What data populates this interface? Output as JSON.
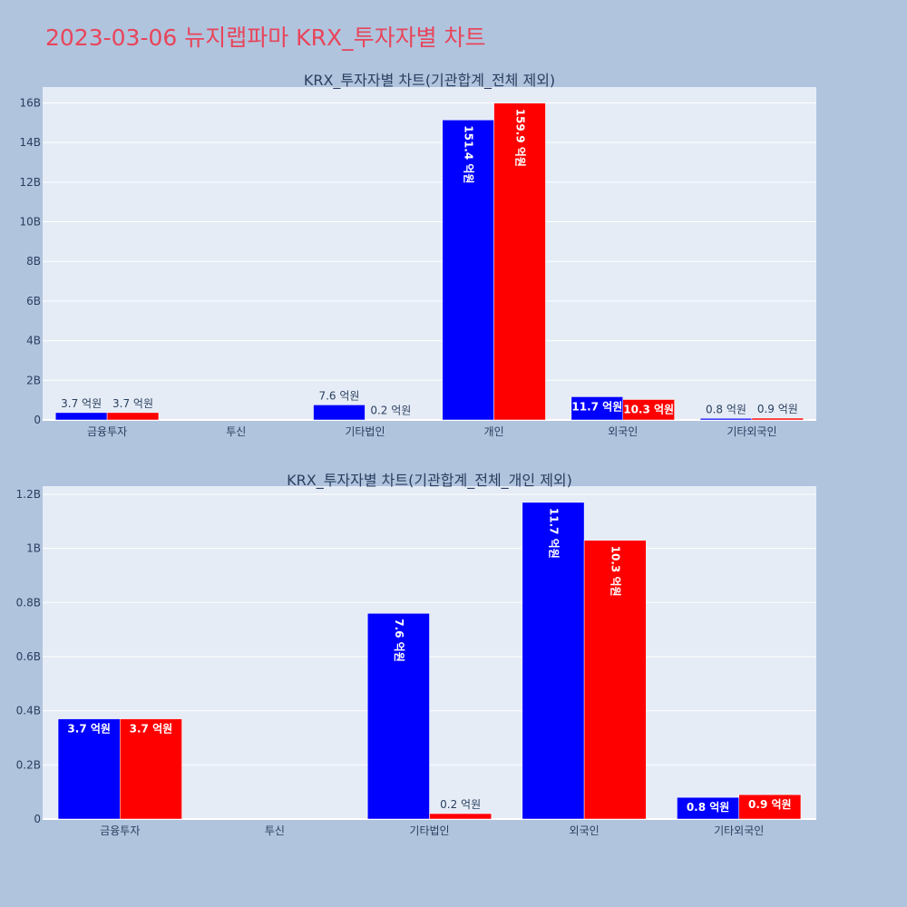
{
  "page": {
    "title": "2023-03-06 뉴지랩파마 KRX_투자자별 차트"
  },
  "chart_data": [
    {
      "type": "bar",
      "title": "KRX_투자자별 차트(기관합계_전체 제외)",
      "categories": [
        "금융투자",
        "투신",
        "기타법인",
        "개인",
        "외국인",
        "기타외국인"
      ],
      "series": [
        {
          "color": "#0000ff",
          "values": [
            370000000,
            0,
            760000000,
            15140000000,
            1170000000,
            80000000
          ],
          "labels": [
            "3.7 억원",
            "",
            "7.6 억원",
            "151.4 억원",
            "11.7 억원",
            "0.8 억원"
          ]
        },
        {
          "color": "#ff0000",
          "values": [
            370000000,
            0,
            20000000,
            15990000000,
            1030000000,
            90000000
          ],
          "labels": [
            "3.7 억원",
            "",
            "0.2 억원",
            "159.9 억원",
            "10.3 억원",
            "0.9 억원"
          ]
        }
      ],
      "ylim": [
        0,
        16800000000
      ],
      "yticks": [
        0,
        2000000000,
        4000000000,
        6000000000,
        8000000000,
        10000000000,
        12000000000,
        14000000000,
        16000000000
      ],
      "ytick_labels": [
        "0",
        "2B",
        "4B",
        "6B",
        "8B",
        "10B",
        "12B",
        "14B",
        "16B"
      ],
      "grid": true
    },
    {
      "type": "bar",
      "title": "KRX_투자자별 차트(기관합계_전체_개인 제외)",
      "categories": [
        "금융투자",
        "투신",
        "기타법인",
        "외국인",
        "기타외국인"
      ],
      "series": [
        {
          "color": "#0000ff",
          "values": [
            370000000,
            0,
            760000000,
            1170000000,
            80000000
          ],
          "labels": [
            "3.7 억원",
            "",
            "7.6 억원",
            "11.7 억원",
            "0.8 억원"
          ]
        },
        {
          "color": "#ff0000",
          "values": [
            370000000,
            0,
            20000000,
            1030000000,
            90000000
          ],
          "labels": [
            "3.7 억원",
            "",
            "0.2 억원",
            "10.3 억원",
            "0.9 억원"
          ]
        }
      ],
      "ylim": [
        0,
        1230000000
      ],
      "yticks": [
        0,
        200000000,
        400000000,
        600000000,
        800000000,
        1000000000,
        1200000000
      ],
      "ytick_labels": [
        "0",
        "0.2B",
        "0.4B",
        "0.6B",
        "0.8B",
        "1B",
        "1.2B"
      ],
      "grid": true
    }
  ]
}
